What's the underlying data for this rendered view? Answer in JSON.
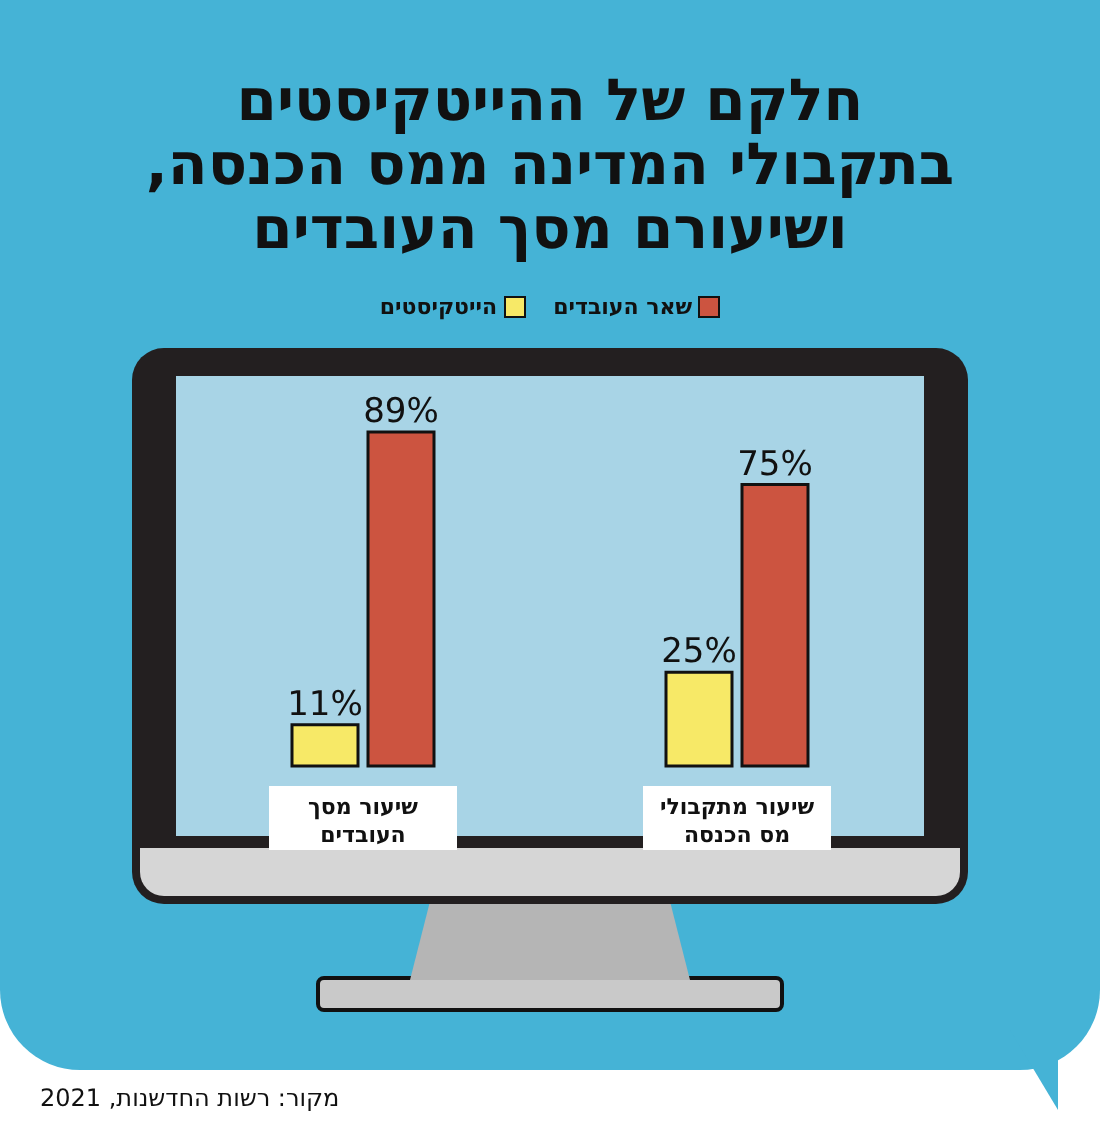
{
  "chart_data": {
    "type": "bar",
    "title": "חלקם של ההייטקיסטים בתקבולי המדינה ממס הכנסה, ושיעורם מסך העובדים",
    "categories": [
      "שיעור מסך העובדים",
      "שיעור מתקבולי מס הכנסה"
    ],
    "series": [
      {
        "name": "הייטקיסטים",
        "color": "#f7e967",
        "values": [
          11,
          25
        ],
        "value_labels": [
          "11%",
          "25%"
        ]
      },
      {
        "name": "שאר העובדים",
        "color": "#cc5440",
        "values": [
          89,
          75
        ],
        "value_labels": [
          "89%",
          "75%"
        ]
      }
    ],
    "legend": "top",
    "annotations": [
      "מקור: רשות החדשנות, 2021"
    ]
  }
}
